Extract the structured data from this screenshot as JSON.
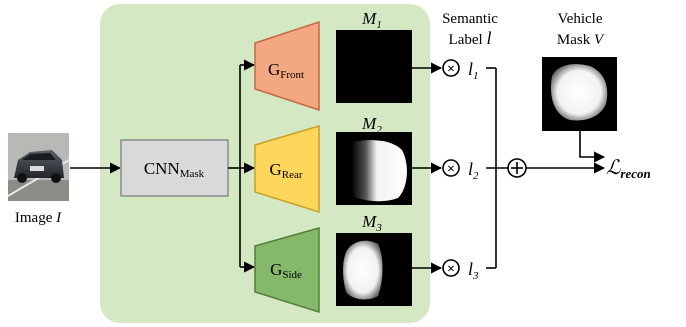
{
  "input": {
    "label": "Image",
    "symbol": "I"
  },
  "encoder": {
    "name": "CNN",
    "sub": "Mask"
  },
  "branches": [
    {
      "gen": "G",
      "gen_sub": "Front",
      "mask": "M",
      "mask_sub": "1",
      "weight": "l",
      "weight_sub": "1",
      "color": "#f4a882",
      "stroke": "#c5673f"
    },
    {
      "gen": "G",
      "gen_sub": "Rear",
      "mask": "M",
      "mask_sub": "2",
      "weight": "l",
      "weight_sub": "2",
      "color": "#ffd65c",
      "stroke": "#c9a01e"
    },
    {
      "gen": "G",
      "gen_sub": "Side",
      "mask": "M",
      "mask_sub": "3",
      "weight": "l",
      "weight_sub": "3",
      "color": "#86b86a",
      "stroke": "#4f7f38"
    }
  ],
  "semantic": {
    "line1": "Semantic",
    "line2": "Label",
    "symbol": "l"
  },
  "vehicle_mask": {
    "line1": "Vehicle",
    "line2": "Mask",
    "symbol": "V"
  },
  "operators": {
    "multiply": "⊗",
    "sum": "+"
  },
  "loss": {
    "symbol": "ℒ",
    "sub": "recon"
  },
  "colors": {
    "panel": "#d4e8c4",
    "encoder_fill": "#d9d9d9",
    "encoder_stroke": "#8c8c8c"
  }
}
